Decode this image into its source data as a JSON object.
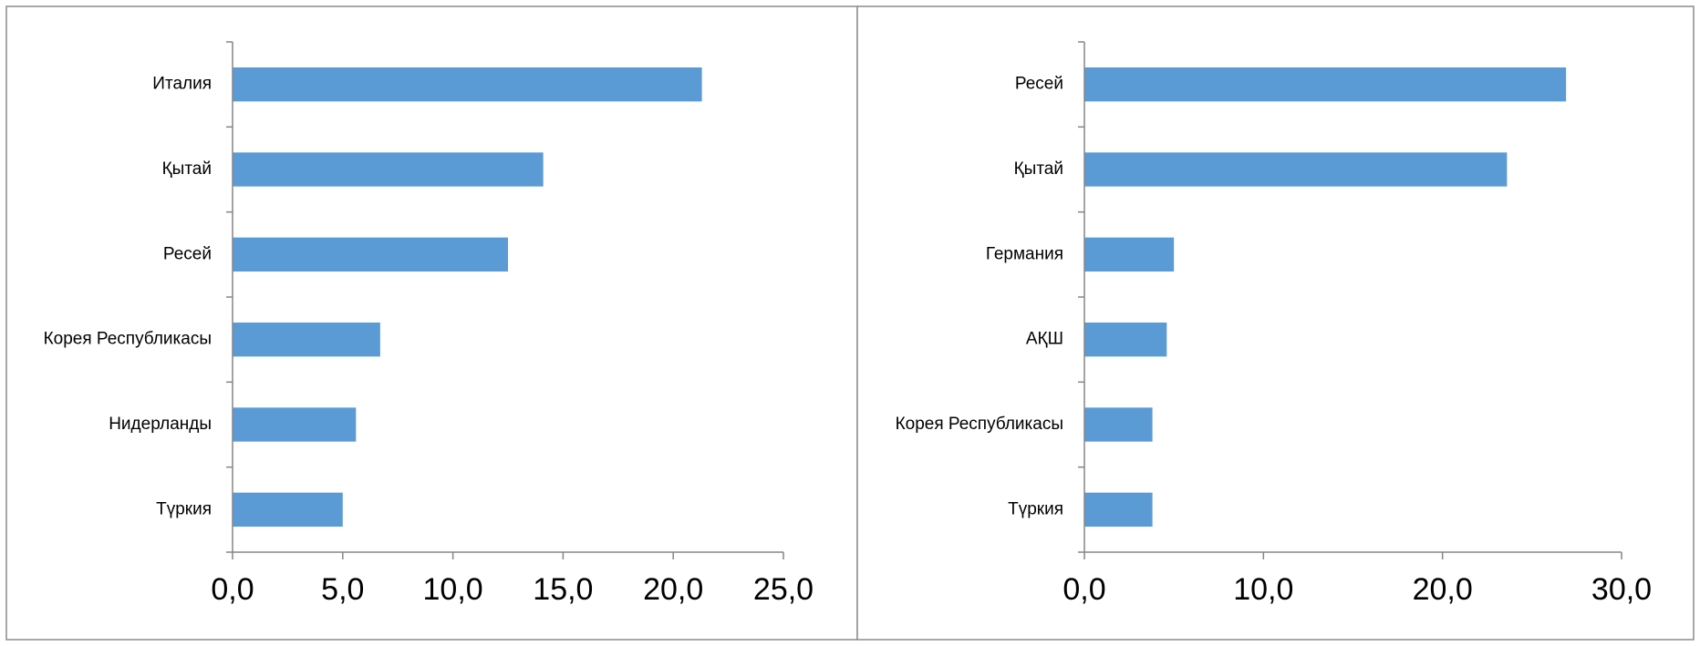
{
  "colors": {
    "bar": "#5b9bd5",
    "axis": "#868686",
    "frame": "#8c8c8c",
    "text": "#000000"
  },
  "chart_data": [
    {
      "type": "bar",
      "orientation": "horizontal",
      "title": "",
      "xlabel": "",
      "ylabel": "",
      "categories": [
        "Италия",
        "Қытай",
        "Ресей",
        "Корея Республикасы",
        "Нидерланды",
        "Түркия"
      ],
      "values": [
        21.3,
        14.1,
        12.5,
        6.7,
        5.6,
        5.0
      ],
      "xlim": [
        0,
        25
      ],
      "ticks": [
        0,
        5,
        10,
        15,
        20,
        25
      ],
      "tick_labels": [
        "0,0",
        "5,0",
        "10,0",
        "15,0",
        "20,0",
        "25,0"
      ],
      "grid": false,
      "legend": "none"
    },
    {
      "type": "bar",
      "orientation": "horizontal",
      "title": "",
      "xlabel": "",
      "ylabel": "",
      "categories": [
        "Ресей",
        "Қытай",
        "Германия",
        "АҚШ",
        "Корея Республикасы",
        "Түркия"
      ],
      "values": [
        26.9,
        23.6,
        5.0,
        4.6,
        3.8,
        3.8
      ],
      "xlim": [
        0,
        30
      ],
      "ticks": [
        0,
        10,
        20,
        30
      ],
      "tick_labels": [
        "0,0",
        "10,0",
        "20,0",
        "30,0"
      ],
      "grid": false,
      "legend": "none"
    }
  ]
}
